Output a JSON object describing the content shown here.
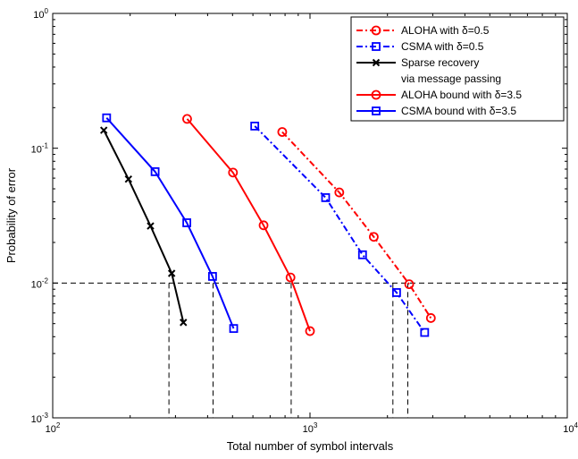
{
  "chart_data": {
    "type": "line",
    "title": "",
    "xlabel": "Total number of symbol intervals",
    "ylabel": "Probability of error",
    "xscale": "log",
    "yscale": "log",
    "xlim": [
      100,
      10000
    ],
    "ylim": [
      0.001,
      1
    ],
    "x_ticks": [
      {
        "value": 100,
        "base": "10",
        "exp": "2"
      },
      {
        "value": 1000,
        "base": "10",
        "exp": "3"
      },
      {
        "value": 10000,
        "base": "10",
        "exp": "4"
      }
    ],
    "y_ticks": [
      {
        "value": 1,
        "base": "10",
        "exp": "0"
      },
      {
        "value": 0.1,
        "base": "10",
        "exp": "-1"
      },
      {
        "value": 0.01,
        "base": "10",
        "exp": "-2"
      },
      {
        "value": 0.001,
        "base": "10",
        "exp": "-3"
      }
    ],
    "grid": false,
    "legend_position": "top-right",
    "series": [
      {
        "name": "ALOHA with δ=0.5",
        "color": "#ff0000",
        "dash": "dashdot",
        "marker": "circle",
        "x": [
          780,
          1300,
          1770,
          2430,
          2950
        ],
        "y": [
          0.132,
          0.047,
          0.022,
          0.0098,
          0.0055
        ]
      },
      {
        "name": "CSMA with δ=0.5",
        "color": "#0000ff",
        "dash": "dashdot",
        "marker": "square",
        "x": [
          610,
          1150,
          1600,
          2170,
          2790
        ],
        "y": [
          0.146,
          0.043,
          0.0162,
          0.0085,
          0.0043
        ]
      },
      {
        "name": "Sparse recovery via message passing",
        "legend_lines": [
          "Sparse recovery",
          "via message passing"
        ],
        "color": "#000000",
        "dash": "solid",
        "marker": "x",
        "x": [
          158,
          197,
          240,
          290,
          322
        ],
        "y": [
          0.136,
          0.059,
          0.0265,
          0.0118,
          0.0051
        ]
      },
      {
        "name": "ALOHA bound with δ=3.5",
        "color": "#ff0000",
        "dash": "solid",
        "marker": "circle",
        "x": [
          333,
          502,
          660,
          840,
          1000
        ],
        "y": [
          0.165,
          0.066,
          0.0268,
          0.011,
          0.0044
        ]
      },
      {
        "name": "CSMA bound with δ=3.5",
        "color": "#0000ff",
        "dash": "solid",
        "marker": "square",
        "x": [
          162,
          250,
          332,
          418,
          505
        ],
        "y": [
          0.168,
          0.067,
          0.028,
          0.0112,
          0.0046
        ]
      }
    ],
    "reference_lines": {
      "horizontal_y": 0.01,
      "vertical_x": [
        283,
        420,
        845,
        2100,
        2400
      ]
    }
  }
}
